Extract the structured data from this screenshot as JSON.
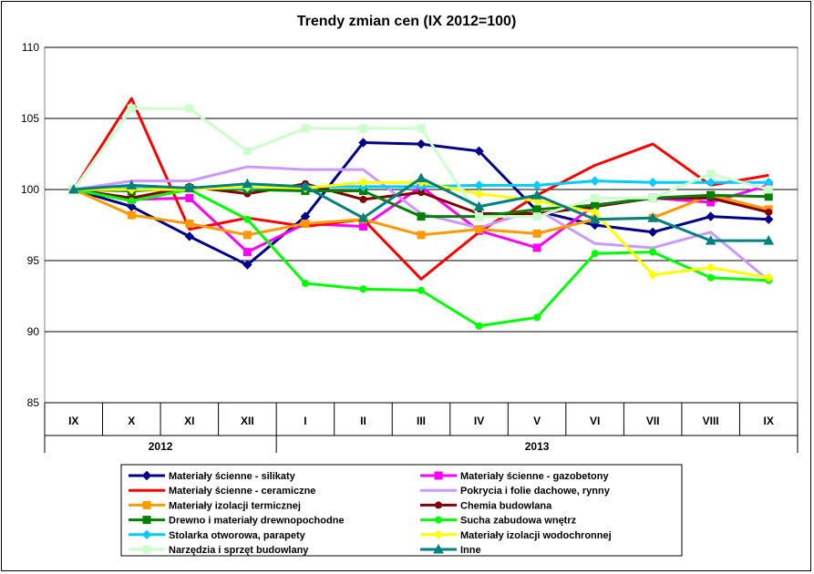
{
  "chart_data": {
    "type": "line",
    "title": "Trendy zmian cen (IX 2012=100)",
    "xlabel": "",
    "ylabel": "",
    "ylim": [
      85,
      110
    ],
    "yticks": [
      85,
      90,
      95,
      100,
      105,
      110
    ],
    "categories": [
      "IX",
      "X",
      "XI",
      "XII",
      "I",
      "II",
      "III",
      "IV",
      "V",
      "VI",
      "VII",
      "VIII",
      "IX"
    ],
    "year_groups": [
      {
        "label": "2012",
        "span": 4
      },
      {
        "label": "2013",
        "span": 9
      }
    ],
    "grid": true,
    "legend_position": "bottom",
    "series": [
      {
        "name": "Materiały ścienne - silikaty",
        "color": "#00008B",
        "marker": "diamond",
        "values": [
          100,
          98.8,
          96.7,
          94.7,
          98.1,
          103.3,
          103.2,
          102.7,
          98.5,
          97.5,
          97.0,
          98.1,
          97.9
        ]
      },
      {
        "name": "Materiały ścienne - gazobetony",
        "color": "#FF00FF",
        "marker": "square",
        "values": [
          100,
          99.3,
          99.4,
          95.6,
          97.6,
          97.4,
          100.2,
          97.1,
          95.9,
          98.9,
          99.4,
          99.1,
          100.3
        ]
      },
      {
        "name": "Materiały ścienne - ceramiczne",
        "color": "#FF0000",
        "marker": "none",
        "values": [
          100,
          106.4,
          97.2,
          98.0,
          97.4,
          97.9,
          93.7,
          97.0,
          99.6,
          101.7,
          103.2,
          100.3,
          101.0
        ]
      },
      {
        "name": "Pokrycia i folie dachowe, rynny",
        "color": "#CC99FF",
        "marker": "none",
        "values": [
          100,
          100.6,
          100.6,
          101.6,
          101.4,
          101.4,
          98.3,
          97.3,
          98.6,
          96.2,
          95.9,
          97.0,
          93.6
        ]
      },
      {
        "name": "Materiały izolacji termicznej",
        "color": "#FF9900",
        "marker": "square",
        "values": [
          100,
          98.2,
          97.6,
          96.8,
          97.6,
          97.9,
          96.8,
          97.2,
          96.9,
          97.9,
          98.0,
          99.6,
          98.6
        ]
      },
      {
        "name": "Chemia budowlana",
        "color": "#800000",
        "marker": "circle",
        "values": [
          100,
          99.4,
          100.2,
          99.7,
          100.4,
          99.3,
          99.8,
          98.3,
          98.3,
          98.8,
          99.4,
          99.4,
          98.4
        ]
      },
      {
        "name": "Drewno i materiały drewnopochodne",
        "color": "#008000",
        "marker": "square",
        "values": [
          100,
          99.9,
          100.1,
          100.0,
          99.9,
          99.9,
          98.1,
          98.1,
          98.6,
          98.9,
          99.4,
          99.6,
          99.5
        ]
      },
      {
        "name": "Sucha zabudowa wnętrz",
        "color": "#00FF00",
        "marker": "circle",
        "values": [
          100,
          99.2,
          100.0,
          97.9,
          93.4,
          93.0,
          92.9,
          90.4,
          91.0,
          95.5,
          95.6,
          93.8,
          93.6
        ]
      },
      {
        "name": "Stolarka otworowa, parapety",
        "color": "#00CCFF",
        "marker": "diamond",
        "values": [
          100,
          100.1,
          100.1,
          100.1,
          100.2,
          100.2,
          100.2,
          100.3,
          100.3,
          100.6,
          100.5,
          100.5,
          100.5
        ]
      },
      {
        "name": "Materiały izolacji wodochronnej",
        "color": "#FFFF00",
        "marker": "diamond",
        "values": [
          100,
          100.0,
          100.0,
          100.2,
          100.1,
          100.5,
          100.5,
          99.7,
          99.2,
          98.4,
          94.0,
          94.5,
          93.8
        ]
      },
      {
        "name": "Narzędzia i sprzęt budowlany",
        "color": "#CCFFCC",
        "marker": "square",
        "values": [
          100,
          105.7,
          105.7,
          102.7,
          104.3,
          104.3,
          104.3,
          98.1,
          98.1,
          99.4,
          99.4,
          101.1,
          100.0
        ]
      },
      {
        "name": "Inne",
        "color": "#008080",
        "marker": "triangle",
        "values": [
          100,
          100.3,
          100.1,
          100.4,
          100.2,
          98.0,
          100.8,
          98.8,
          99.6,
          97.9,
          98.0,
          96.4,
          96.4
        ]
      }
    ]
  }
}
